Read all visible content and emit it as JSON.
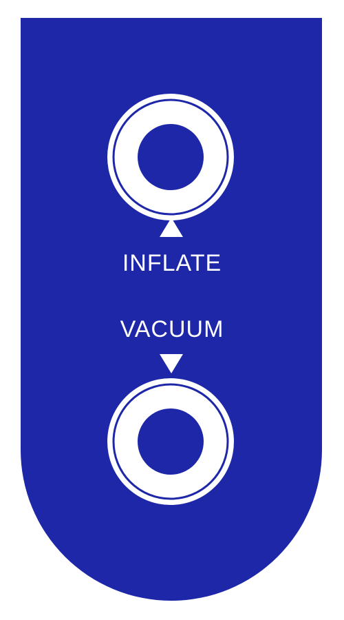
{
  "controls": {
    "inflate": {
      "label": "INFLATE",
      "direction_icon": "arrow-up-icon"
    },
    "vacuum": {
      "label": "VACUUM",
      "direction_icon": "arrow-down-icon"
    }
  },
  "colors": {
    "panel": "#1d27a8",
    "foreground": "#ffffff"
  }
}
